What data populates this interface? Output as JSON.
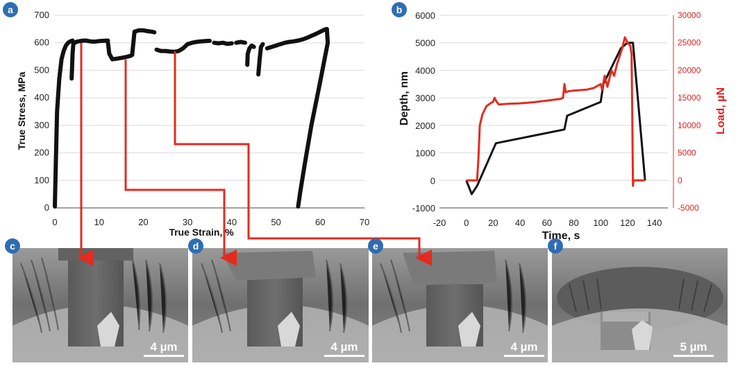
{
  "panel_labels": [
    "a",
    "b",
    "c",
    "d",
    "e",
    "f"
  ],
  "scale_bars": [
    "4 µm",
    "4 µm",
    "4 µm",
    "5 µm"
  ],
  "colors": {
    "black": "#111111",
    "red": "#e42b20",
    "badge": "#2f6db3",
    "grid": "#d9d9d9"
  },
  "chart_data": [
    {
      "type": "scatter",
      "xlabel": "True Strain, %",
      "ylabel": "True Stress, MPa",
      "xlim": [
        0,
        70
      ],
      "ylim": [
        0,
        700
      ],
      "xticks": [
        "0",
        "10",
        "20",
        "30",
        "40",
        "50",
        "60",
        "70"
      ],
      "yticks": [
        "0",
        "100",
        "200",
        "300",
        "400",
        "500",
        "600",
        "700"
      ],
      "grid": true,
      "series": [
        {
          "color": "#111111",
          "segments": [
            [
              [
                0,
                5
              ],
              [
                0.2,
                150
              ],
              [
                0.5,
                350
              ],
              [
                1,
                470
              ],
              [
                1.5,
                540
              ],
              [
                2,
                570
              ],
              [
                2.5,
                590
              ],
              [
                3,
                600
              ],
              [
                3.5,
                605
              ],
              [
                4,
                608
              ]
            ],
            [
              [
                3.8,
                470
              ],
              [
                3.9,
                510
              ],
              [
                4,
                560
              ],
              [
                4.2,
                600
              ]
            ],
            [
              [
                4.5,
                600
              ],
              [
                5,
                604
              ],
              [
                6,
                607
              ],
              [
                7,
                608
              ],
              [
                8,
                605
              ],
              [
                9,
                604
              ],
              [
                10,
                606
              ],
              [
                11,
                607
              ],
              [
                12,
                608
              ]
            ],
            [
              [
                12,
                600
              ],
              [
                12.3,
                560
              ],
              [
                13,
                540
              ],
              [
                14,
                542
              ],
              [
                15,
                545
              ],
              [
                16,
                548
              ],
              [
                17,
                552
              ],
              [
                17.5,
                556
              ]
            ],
            [
              [
                17.5,
                560
              ],
              [
                18,
                640
              ],
              [
                19,
                645
              ],
              [
                20,
                645
              ],
              [
                21,
                642
              ],
              [
                22,
                640
              ],
              [
                22.5,
                638
              ]
            ],
            [
              [
                23,
                575
              ],
              [
                24,
                570
              ],
              [
                25,
                570
              ],
              [
                26,
                568
              ],
              [
                27,
                567
              ],
              [
                28,
                570
              ],
              [
                29,
                580
              ],
              [
                30,
                595
              ],
              [
                31,
                600
              ],
              [
                32,
                603
              ],
              [
                33,
                605
              ],
              [
                34,
                606
              ],
              [
                35,
                607
              ]
            ],
            [
              [
                36,
                600
              ],
              [
                37,
                598
              ],
              [
                38,
                600
              ],
              [
                39,
                596
              ],
              [
                40,
                598
              ]
            ],
            [
              [
                41,
                600
              ],
              [
                42,
                603
              ],
              [
                43,
                600
              ]
            ],
            [
              [
                43.5,
                520
              ],
              [
                43.6,
                560
              ],
              [
                44,
                580
              ],
              [
                44.5,
                590
              ],
              [
                45,
                585
              ]
            ],
            [
              [
                46,
                485
              ],
              [
                46.3,
                540
              ],
              [
                46.6,
                585
              ],
              [
                47,
                595
              ]
            ],
            [
              [
                48,
                580
              ],
              [
                49,
                585
              ],
              [
                50,
                590
              ],
              [
                51,
                595
              ],
              [
                52,
                600
              ],
              [
                53,
                603
              ],
              [
                54,
                605
              ],
              [
                55,
                608
              ],
              [
                56,
                612
              ],
              [
                57,
                618
              ],
              [
                58,
                625
              ],
              [
                59,
                632
              ],
              [
                60,
                640
              ],
              [
                61,
                648
              ],
              [
                61.5,
                650
              ]
            ],
            [
              [
                61.5,
                650
              ],
              [
                61.7,
                600
              ],
              [
                60,
                460
              ],
              [
                58,
                300
              ],
              [
                56.5,
                160
              ],
              [
                55.5,
                60
              ],
              [
                55,
                5
              ]
            ]
          ]
        }
      ]
    },
    {
      "type": "line",
      "xlabel": "Time, s",
      "ylabel": "Depth, nm",
      "y2label": "Load, µN",
      "xlim": [
        -20,
        150
      ],
      "ylim": [
        -1000,
        6000
      ],
      "y2lim": [
        -5000,
        30000
      ],
      "xticks": [
        "-20",
        "0",
        "20",
        "40",
        "60",
        "80",
        "100",
        "120",
        "140"
      ],
      "yticks": [
        "-1000",
        "0",
        "1000",
        "2000",
        "3000",
        "4000",
        "5000",
        "6000"
      ],
      "y2ticks": [
        "-5000",
        "0",
        "5000",
        "10000",
        "15000",
        "20000",
        "25000",
        "30000"
      ],
      "grid": true,
      "series": [
        {
          "axis": "left",
          "color": "#111111",
          "x": [
            0,
            4,
            8,
            22,
            73,
            75,
            100,
            102,
            115,
            120,
            124,
            133
          ],
          "y": [
            0,
            -500,
            -200,
            1350,
            1850,
            2350,
            2850,
            3500,
            4800,
            5000,
            5000,
            0
          ]
        },
        {
          "axis": "right",
          "color": "#e42b20",
          "x": [
            0,
            4,
            8,
            9,
            10,
            12,
            15,
            18,
            20,
            21,
            22,
            24,
            30,
            40,
            50,
            60,
            70,
            72,
            73,
            74,
            76,
            80,
            90,
            95,
            100,
            101,
            103,
            105,
            108,
            110,
            112,
            114,
            116,
            118,
            120,
            122,
            123,
            123.5,
            124,
            124.5,
            128,
            133
          ],
          "y": [
            0,
            0,
            0,
            4000,
            10000,
            12000,
            13500,
            14000,
            14300,
            15000,
            14500,
            13800,
            13900,
            14000,
            14200,
            14500,
            14800,
            15000,
            17500,
            16000,
            16200,
            16300,
            16500,
            16800,
            17500,
            16500,
            19000,
            17000,
            20000,
            19000,
            21000,
            22500,
            24000,
            26000,
            25000,
            24500,
            23000,
            12000,
            -1000,
            0,
            0,
            0
          ]
        }
      ]
    }
  ]
}
